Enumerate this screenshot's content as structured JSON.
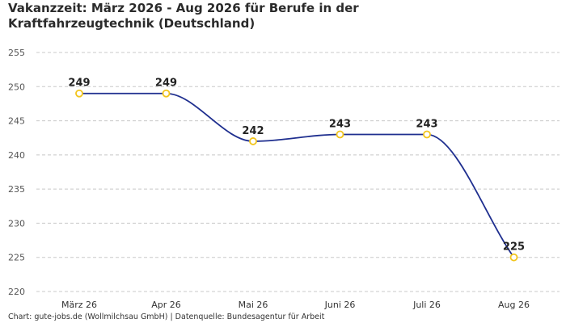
{
  "chart_data": {
    "type": "line",
    "title": "Vakanzzeit: März 2026 - Aug 2026 für Berufe in der Kraftfahrzeugtechnik (Deutschland)",
    "xlabel": "",
    "ylabel": "",
    "categories": [
      "März 26",
      "Apr 26",
      "Mai 26",
      "Juni 26",
      "Juli 26",
      "Aug 26"
    ],
    "series": [
      {
        "values": [
          249,
          249,
          242,
          243,
          243,
          225
        ]
      }
    ],
    "yticks": [
      220,
      225,
      230,
      235,
      240,
      245,
      250,
      255
    ],
    "ylim": [
      220,
      255
    ],
    "grid": true,
    "line_color": "#1f2f8f",
    "marker_color": "#f2c51d",
    "smooth": true
  },
  "footer": "Chart: gute-jobs.de (Wollmilchsau GmbH) | Datenquelle: Bundesagentur für Arbeit"
}
